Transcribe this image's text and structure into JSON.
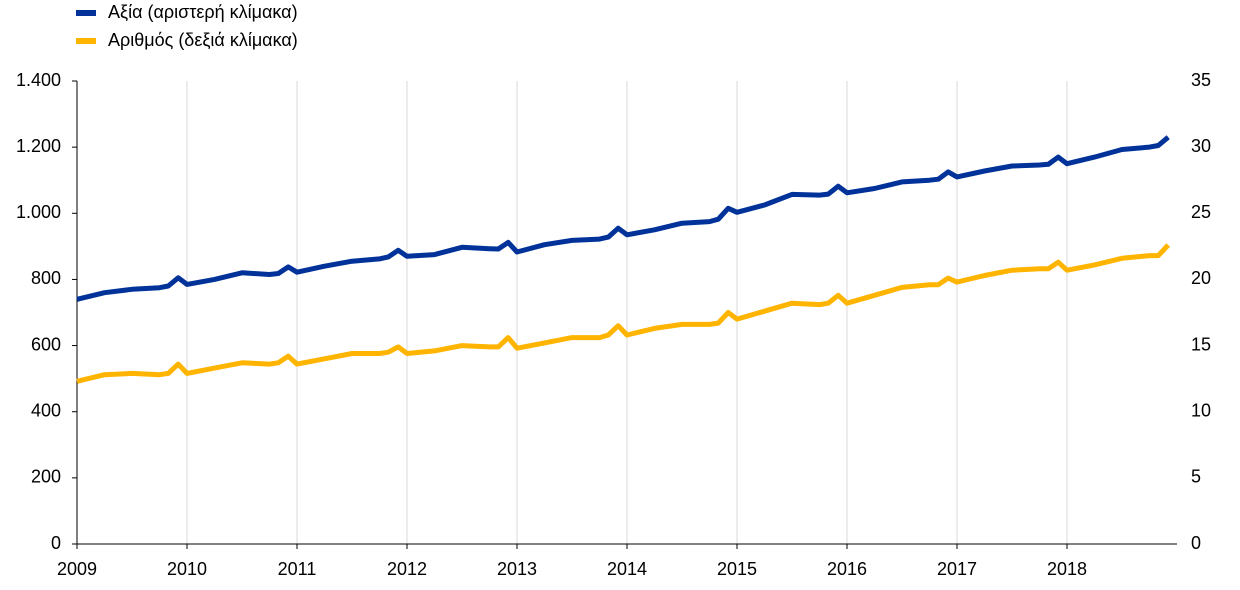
{
  "chart_data": {
    "type": "line",
    "x": [
      2009,
      2009.25,
      2009.5,
      2009.75,
      2009.83,
      2009.92,
      2010,
      2010.25,
      2010.5,
      2010.75,
      2010.83,
      2010.92,
      2011,
      2011.25,
      2011.5,
      2011.75,
      2011.83,
      2011.92,
      2012,
      2012.25,
      2012.5,
      2012.75,
      2012.83,
      2012.92,
      2013,
      2013.25,
      2013.5,
      2013.75,
      2013.83,
      2013.92,
      2014,
      2014.25,
      2014.5,
      2014.75,
      2014.83,
      2014.92,
      2015,
      2015.25,
      2015.5,
      2015.75,
      2015.83,
      2015.92,
      2016,
      2016.25,
      2016.5,
      2016.75,
      2016.83,
      2016.92,
      2017,
      2017.25,
      2017.5,
      2017.75,
      2017.83,
      2017.92,
      2018,
      2018.25,
      2018.5,
      2018.75,
      2018.83,
      2018.92
    ],
    "series": [
      {
        "name": "Αξία (αριστερή κλίμακα)",
        "color": "#003299",
        "values": [
          740,
          760,
          770,
          775,
          780,
          805,
          785,
          800,
          820,
          815,
          818,
          838,
          822,
          840,
          855,
          862,
          868,
          888,
          870,
          875,
          897,
          893,
          892,
          912,
          883,
          905,
          918,
          922,
          928,
          955,
          935,
          950,
          970,
          975,
          982,
          1015,
          1003,
          1025,
          1057,
          1055,
          1058,
          1082,
          1062,
          1075,
          1095,
          1100,
          1103,
          1125,
          1110,
          1128,
          1143,
          1146,
          1148,
          1170,
          1150,
          1170,
          1193,
          1200,
          1205,
          1230
        ]
      },
      {
        "name": "Αριθμός (δεξιά κλίμακα)",
        "color": "#ffb400",
        "axis": "y2",
        "values": [
          12.3,
          12.8,
          12.9,
          12.8,
          12.9,
          13.6,
          12.9,
          13.3,
          13.7,
          13.6,
          13.7,
          14.2,
          13.6,
          14.0,
          14.4,
          14.4,
          14.5,
          14.9,
          14.4,
          14.6,
          15.0,
          14.9,
          14.9,
          15.6,
          14.8,
          15.2,
          15.6,
          15.6,
          15.8,
          16.5,
          15.8,
          16.3,
          16.6,
          16.6,
          16.7,
          17.5,
          17.0,
          17.6,
          18.2,
          18.1,
          18.2,
          18.8,
          18.2,
          18.8,
          19.4,
          19.6,
          19.6,
          20.1,
          19.8,
          20.3,
          20.7,
          20.8,
          20.8,
          21.3,
          20.7,
          21.1,
          21.6,
          21.8,
          21.8,
          22.6
        ]
      }
    ],
    "xlim": [
      2009,
      2019
    ],
    "xticks": [
      2009,
      2010,
      2011,
      2012,
      2013,
      2014,
      2015,
      2016,
      2017,
      2018
    ],
    "ylim": [
      0,
      1400
    ],
    "yticks": [
      0,
      200,
      400,
      600,
      800,
      {
        "value": 1000,
        "label": "1.000"
      },
      {
        "value": 1200,
        "label": "1.200"
      },
      {
        "value": 1400,
        "label": "1.400"
      }
    ],
    "y2lim": [
      0,
      35
    ],
    "y2ticks": [
      0,
      5,
      10,
      15,
      20,
      25,
      30,
      35
    ],
    "grid": true,
    "legend": "top-left"
  }
}
